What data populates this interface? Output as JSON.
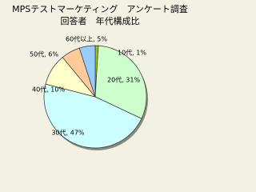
{
  "chart_data": {
    "type": "pie",
    "title": "MPSテストマーケティング　アンケート調査",
    "subtitle": "回答者　年代構成比",
    "values": [
      1,
      31,
      47,
      10,
      6,
      5
    ],
    "value_labels": [
      "10代, 1%",
      "20代, 31%",
      "30代, 47%",
      "40代, 10%",
      "50代, 6%",
      "60代以上, 5%"
    ],
    "colors": [
      "#99cc00",
      "#ccffcc",
      "#ccffff",
      "#ffffcc",
      "#ffcc99",
      "#99ccff"
    ]
  }
}
